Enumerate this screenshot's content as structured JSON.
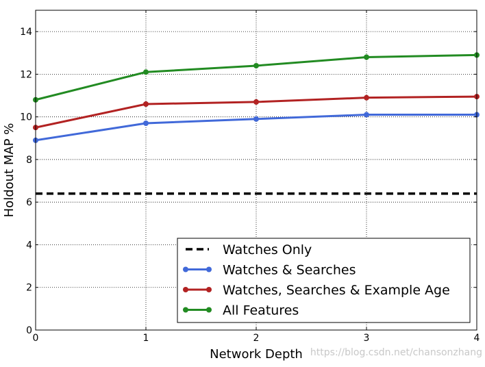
{
  "chart_data": {
    "type": "line",
    "title": "",
    "xlabel": "Network Depth",
    "ylabel": "Holdout MAP %",
    "xlim": [
      0,
      4
    ],
    "ylim": [
      0,
      15
    ],
    "xticks": [
      0,
      1,
      2,
      3,
      4
    ],
    "yticks": [
      0,
      2,
      4,
      6,
      8,
      10,
      12,
      14
    ],
    "grid": true,
    "legend_position": "lower-right",
    "x": [
      0,
      1,
      2,
      3,
      4
    ],
    "series": [
      {
        "name": "Watches Only",
        "style": "dashed",
        "marker": "none",
        "color": "#000000",
        "values": [
          6.4,
          6.4,
          6.4,
          6.4,
          6.4
        ]
      },
      {
        "name": "Watches & Searches",
        "style": "solid",
        "marker": "circle",
        "color": "#4169d9",
        "values": [
          8.9,
          9.7,
          9.9,
          10.1,
          10.1
        ]
      },
      {
        "name": "Watches, Searches & Example Age",
        "style": "solid",
        "marker": "circle",
        "color": "#b22222",
        "values": [
          9.5,
          10.6,
          10.7,
          10.9,
          10.95
        ]
      },
      {
        "name": "All Features",
        "style": "solid",
        "marker": "circle",
        "color": "#228b22",
        "values": [
          10.8,
          12.1,
          12.4,
          12.8,
          12.9
        ]
      }
    ]
  },
  "watermark": "https://blog.csdn.net/chansonzhang"
}
